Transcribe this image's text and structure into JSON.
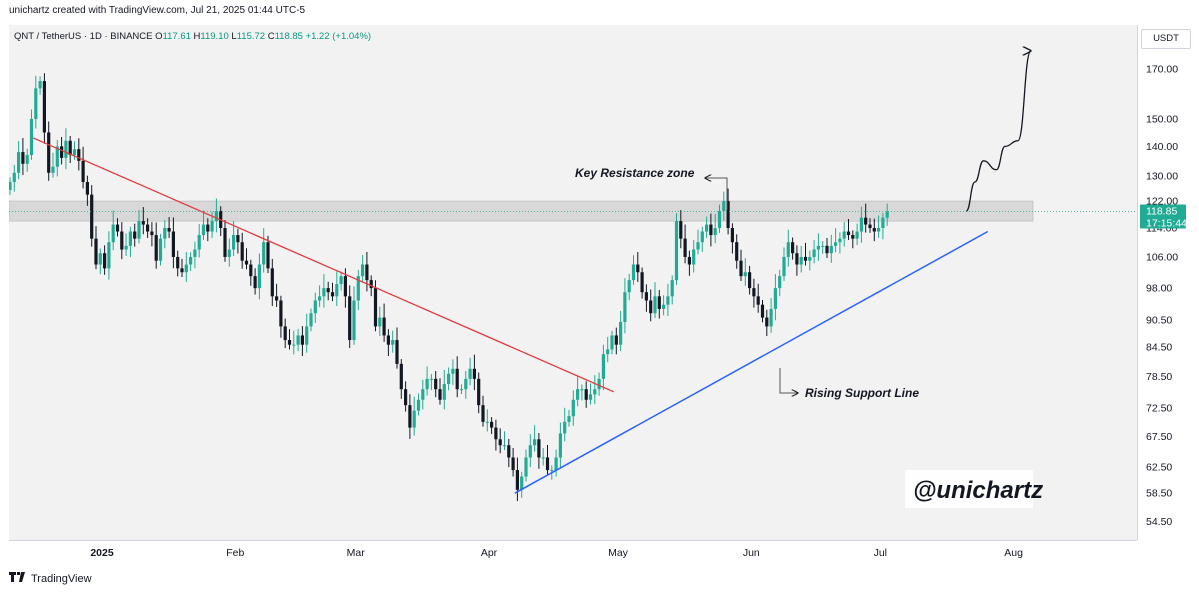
{
  "header": {
    "title": "unichartz created with TradingView.com, Jul 21, 2025 01:44 UTC-5"
  },
  "legend": {
    "symbol": "QNT / TetherUS · 1D · BINANCE",
    "open_label": "O",
    "open": "117.61",
    "high_label": "H",
    "high": "119.10",
    "low_label": "L",
    "low": "115.72",
    "close_label": "C",
    "close": "118.85",
    "change": "+1.22 (+1.04%)"
  },
  "scale": {
    "currency": "USDT",
    "last_price": "118.85",
    "countdown": "17:15:44"
  },
  "annotations": {
    "resistance": "Key Resistance zone",
    "support": "Rising Support Line",
    "watermark": "@unichartz"
  },
  "footer": {
    "brand": "TradingView"
  },
  "colors": {
    "up": "#22ab94",
    "down": "#131722",
    "trend_down": "#e03a3e",
    "trend_up": "#2962ff",
    "zone": "#d8d8d8"
  },
  "chart_data": {
    "type": "candlestick",
    "scale": "log",
    "y_ticks": [
      "170.00",
      "150.00",
      "140.00",
      "130.00",
      "122.00",
      "114.00",
      "106.00",
      "98.00",
      "90.50",
      "84.50",
      "78.50",
      "72.50",
      "67.50",
      "62.50",
      "58.50",
      "54.50"
    ],
    "x_ticks": [
      "2025",
      "Feb",
      "Mar",
      "Apr",
      "May",
      "Jun",
      "Jul",
      "Aug"
    ],
    "ylim": [
      52,
      190
    ],
    "resistance_zone": [
      116,
      122
    ],
    "downtrend_line": {
      "from": [
        "2024-12-16",
        143
      ],
      "to": [
        "2025-04-30",
        75.5
      ]
    },
    "support_line": {
      "from": [
        "2025-04-07",
        58.5
      ],
      "to": [
        "2025-07-26",
        113
      ]
    },
    "projection": [
      [
        "2025-07-21",
        119
      ],
      [
        "2025-07-23",
        128
      ],
      [
        "2025-07-25",
        135
      ],
      [
        "2025-07-28",
        132
      ],
      [
        "2025-07-30",
        140
      ],
      [
        "2025-08-02",
        142
      ],
      [
        "2025-08-05",
        178
      ]
    ],
    "closes": [
      128,
      131,
      138,
      134,
      137,
      150,
      162,
      165,
      145,
      131,
      133,
      140,
      136,
      142,
      137,
      139,
      135,
      128,
      124,
      111,
      104,
      107,
      103,
      110,
      115,
      113,
      108,
      109,
      113,
      111,
      116,
      115,
      113,
      112,
      105,
      111,
      114,
      113,
      106,
      103,
      102,
      104,
      106,
      108,
      112,
      115,
      113,
      116,
      119,
      114,
      106,
      108,
      112,
      110,
      105,
      104,
      101,
      98,
      104,
      110,
      103,
      96,
      95,
      89,
      86,
      85,
      85,
      87,
      85,
      89,
      92,
      95,
      96,
      98,
      97,
      96,
      99,
      101,
      96,
      86,
      95,
      101,
      104,
      100,
      98,
      89,
      91,
      87,
      85,
      86,
      81,
      76,
      73,
      69,
      72,
      74,
      76,
      78,
      78,
      76,
      74,
      77,
      79,
      80,
      76,
      76,
      78,
      80,
      78,
      73,
      70,
      70,
      69,
      67,
      66,
      66,
      64,
      62,
      59,
      61,
      64,
      66,
      67,
      64,
      64,
      62,
      62,
      64,
      68,
      70,
      71,
      74,
      76,
      76,
      74,
      75,
      76,
      78,
      83,
      84,
      87,
      85,
      90,
      97,
      100,
      104,
      102,
      97,
      95,
      92,
      96,
      93,
      94,
      96,
      100,
      116,
      111,
      106,
      104,
      108,
      110,
      113,
      115,
      112,
      114,
      119,
      122,
      114,
      110,
      105,
      101,
      102,
      98,
      96,
      94,
      91,
      89,
      93,
      98,
      101,
      106,
      110,
      107,
      104,
      106,
      105,
      106,
      108,
      109,
      109,
      107,
      109,
      110,
      111,
      113,
      112,
      111,
      113,
      117,
      115,
      114,
      113,
      114,
      117,
      118.85
    ]
  }
}
